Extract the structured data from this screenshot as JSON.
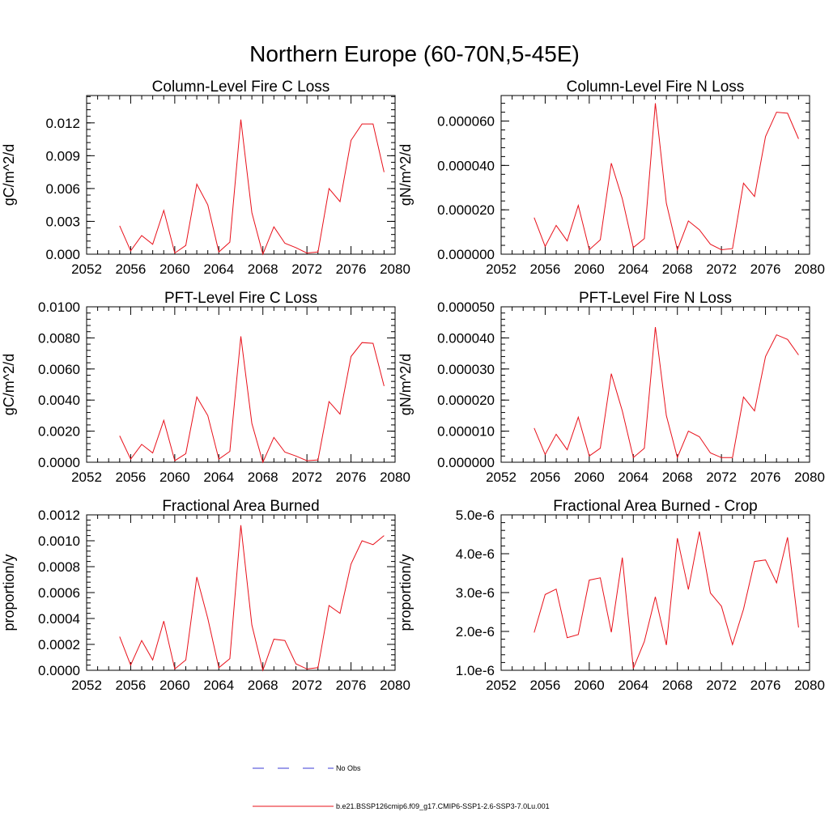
{
  "figure": {
    "title": "Northern Europe (60-70N,5-45E)"
  },
  "chart_data": [
    {
      "type": "line",
      "title": "Column-Level Fire C Loss",
      "ylabel": "gC/m^2/d",
      "xlabel": "",
      "xlim": [
        2052,
        2080
      ],
      "ylim": [
        0,
        0.0145
      ],
      "x_ticks": [
        "2052",
        "2056",
        "2060",
        "2064",
        "2068",
        "2072",
        "2076",
        "2080"
      ],
      "y_ticks": [
        0,
        0.003,
        0.006,
        0.009,
        0.012
      ],
      "y_tick_labels": [
        "0.000",
        "0.003",
        "0.006",
        "0.009",
        "0.012"
      ],
      "x": [
        2055,
        2056,
        2057,
        2058,
        2059,
        2060,
        2061,
        2062,
        2063,
        2064,
        2065,
        2066,
        2067,
        2068,
        2069,
        2070,
        2071,
        2072,
        2073,
        2074,
        2075,
        2076,
        2077,
        2078,
        2079
      ],
      "series": [
        {
          "values": [
            0.0026,
            0.0003,
            0.0017,
            0.0009,
            0.004,
            0.0001,
            0.0008,
            0.0064,
            0.0045,
            0.0002,
            0.0011,
            0.0123,
            0.0038,
            0.0,
            0.0025,
            0.001,
            0.0006,
            0.0001,
            0.0002,
            0.006,
            0.0048,
            0.0104,
            0.0119,
            0.0119,
            0.0075
          ],
          "color": "#e8101a"
        }
      ]
    },
    {
      "type": "line",
      "title": "Column-Level Fire N Loss",
      "ylabel": "gN/m^2/d",
      "xlabel": "",
      "xlim": [
        2052,
        2080
      ],
      "ylim": [
        0,
        7.15e-05
      ],
      "x_ticks": [
        "2052",
        "2056",
        "2060",
        "2064",
        "2068",
        "2072",
        "2076",
        "2080"
      ],
      "y_ticks": [
        0,
        2e-05,
        4e-05,
        6e-05
      ],
      "y_tick_labels": [
        "0.000000",
        "0.000020",
        "0.000040",
        "0.000060"
      ],
      "x": [
        2055,
        2056,
        2057,
        2058,
        2059,
        2060,
        2061,
        2062,
        2063,
        2064,
        2065,
        2066,
        2067,
        2068,
        2069,
        2070,
        2071,
        2072,
        2073,
        2074,
        2075,
        2076,
        2077,
        2078,
        2079
      ],
      "series": [
        {
          "values": [
            1.65e-05,
            3.5e-06,
            1.3e-05,
            6e-06,
            2.2e-05,
            2e-06,
            6.5e-06,
            4.1e-05,
            2.5e-05,
            3e-06,
            7e-06,
            6.8e-05,
            2.3e-05,
            2e-06,
            1.5e-05,
            1.1e-05,
            4.5e-06,
            2e-06,
            2.5e-06,
            3.2e-05,
            2.6e-05,
            5.3e-05,
            6.4e-05,
            6.35e-05,
            5.2e-05
          ],
          "color": "#e8101a"
        }
      ]
    },
    {
      "type": "line",
      "title": "PFT-Level Fire C Loss",
      "ylabel": "gC/m^2/d",
      "xlabel": "",
      "xlim": [
        2052,
        2080
      ],
      "ylim": [
        0,
        0.01
      ],
      "x_ticks": [
        "2052",
        "2056",
        "2060",
        "2064",
        "2068",
        "2072",
        "2076",
        "2080"
      ],
      "y_ticks": [
        0,
        0.002,
        0.004,
        0.006,
        0.008,
        0.01
      ],
      "y_tick_labels": [
        "0.0000",
        "0.0020",
        "0.0040",
        "0.0060",
        "0.0080",
        "0.0100"
      ],
      "x": [
        2055,
        2056,
        2057,
        2058,
        2059,
        2060,
        2061,
        2062,
        2063,
        2064,
        2065,
        2066,
        2067,
        2068,
        2069,
        2070,
        2071,
        2072,
        2073,
        2074,
        2075,
        2076,
        2077,
        2078,
        2079
      ],
      "series": [
        {
          "values": [
            0.0017,
            0.0002,
            0.00115,
            0.0006,
            0.0027,
            0.0001,
            0.00055,
            0.0042,
            0.003,
            0.0002,
            0.0007,
            0.0081,
            0.0025,
            0.0,
            0.0016,
            0.00065,
            0.0004,
            0.0001,
            0.00015,
            0.0039,
            0.0031,
            0.0068,
            0.0077,
            0.00765,
            0.0049
          ],
          "color": "#e8101a"
        }
      ]
    },
    {
      "type": "line",
      "title": "PFT-Level Fire N Loss",
      "ylabel": "gN/m^2/d",
      "xlabel": "",
      "xlim": [
        2052,
        2080
      ],
      "ylim": [
        0,
        5e-05
      ],
      "x_ticks": [
        "2052",
        "2056",
        "2060",
        "2064",
        "2068",
        "2072",
        "2076",
        "2080"
      ],
      "y_ticks": [
        0,
        1e-05,
        2e-05,
        3e-05,
        4e-05,
        5e-05
      ],
      "y_tick_labels": [
        "0.000000",
        "0.000010",
        "0.000020",
        "0.000030",
        "0.000040",
        "0.000050"
      ],
      "x": [
        2055,
        2056,
        2057,
        2058,
        2059,
        2060,
        2061,
        2062,
        2063,
        2064,
        2065,
        2066,
        2067,
        2068,
        2069,
        2070,
        2071,
        2072,
        2073,
        2074,
        2075,
        2076,
        2077,
        2078,
        2079
      ],
      "series": [
        {
          "values": [
            1.1e-05,
            2.5e-06,
            9e-06,
            4e-06,
            1.45e-05,
            2e-06,
            4.5e-06,
            2.85e-05,
            1.65e-05,
            1.5e-06,
            4.5e-06,
            4.35e-05,
            1.5e-05,
            1.5e-06,
            1e-05,
            8.2e-06,
            3e-06,
            1.5e-06,
            1.5e-06,
            2.1e-05,
            1.65e-05,
            3.4e-05,
            4.1e-05,
            3.95e-05,
            3.45e-05
          ],
          "color": "#e8101a"
        }
      ]
    },
    {
      "type": "line",
      "title": "Fractional Area Burned",
      "ylabel": "proportion/y",
      "xlabel": "",
      "xlim": [
        2052,
        2080
      ],
      "ylim": [
        0,
        0.0012
      ],
      "x_ticks": [
        "2052",
        "2056",
        "2060",
        "2064",
        "2068",
        "2072",
        "2076",
        "2080"
      ],
      "y_ticks": [
        0,
        0.0002,
        0.0004,
        0.0006,
        0.0008,
        0.001,
        0.0012
      ],
      "y_tick_labels": [
        "0.0000",
        "0.0002",
        "0.0004",
        "0.0006",
        "0.0008",
        "0.0010",
        "0.0012"
      ],
      "x": [
        2055,
        2056,
        2057,
        2058,
        2059,
        2060,
        2061,
        2062,
        2063,
        2064,
        2065,
        2066,
        2067,
        2068,
        2069,
        2070,
        2071,
        2072,
        2073,
        2074,
        2075,
        2076,
        2077,
        2078,
        2079
      ],
      "series": [
        {
          "values": [
            0.00026,
            4e-05,
            0.00023,
            8e-05,
            0.00038,
            1e-05,
            8e-05,
            0.00072,
            0.0004,
            2e-05,
            9e-05,
            0.00112,
            0.00035,
            0.0,
            0.00024,
            0.00023,
            5e-05,
            1e-05,
            2e-05,
            0.0005,
            0.00044,
            0.00082,
            0.001,
            0.00097,
            0.00104
          ],
          "color": "#e8101a"
        }
      ]
    },
    {
      "type": "line",
      "title": "Fractional Area Burned - Crop",
      "ylabel": "proportion/y",
      "xlabel": "",
      "xlim": [
        2052,
        2080
      ],
      "ylim": [
        1e-06,
        5e-06
      ],
      "x_ticks": [
        "2052",
        "2056",
        "2060",
        "2064",
        "2068",
        "2072",
        "2076",
        "2080"
      ],
      "y_ticks": [
        1e-06,
        2e-06,
        3e-06,
        4e-06,
        5e-06
      ],
      "y_tick_labels": [
        "1.0e-6",
        "2.0e-6",
        "3.0e-6",
        "4.0e-6",
        "5.0e-6"
      ],
      "x": [
        2055,
        2056,
        2057,
        2058,
        2059,
        2060,
        2061,
        2062,
        2063,
        2064,
        2065,
        2066,
        2067,
        2068,
        2069,
        2070,
        2071,
        2072,
        2073,
        2074,
        2075,
        2076,
        2077,
        2078,
        2079
      ],
      "series": [
        {
          "values": [
            1.97e-06,
            2.95e-06,
            3.09e-06,
            1.84e-06,
            1.92e-06,
            3.32e-06,
            3.38e-06,
            1.98e-06,
            3.9e-06,
            1.05e-06,
            1.74e-06,
            2.89e-06,
            1.65e-06,
            4.4e-06,
            3.08e-06,
            4.57e-06,
            2.99e-06,
            2.65e-06,
            1.66e-06,
            2.57e-06,
            3.8e-06,
            3.84e-06,
            3.25e-06,
            4.42e-06,
            2.1e-06
          ],
          "color": "#e8101a"
        }
      ]
    }
  ],
  "legend": [
    {
      "label": "No Obs",
      "style": "dashed",
      "color": "#3b3bd6"
    },
    {
      "label": "b.e21.BSSP126cmip6.f09_g17.CMIP6-SSP1-2.6-SSP3-7.0Lu.001",
      "style": "solid",
      "color": "#e8101a"
    }
  ]
}
